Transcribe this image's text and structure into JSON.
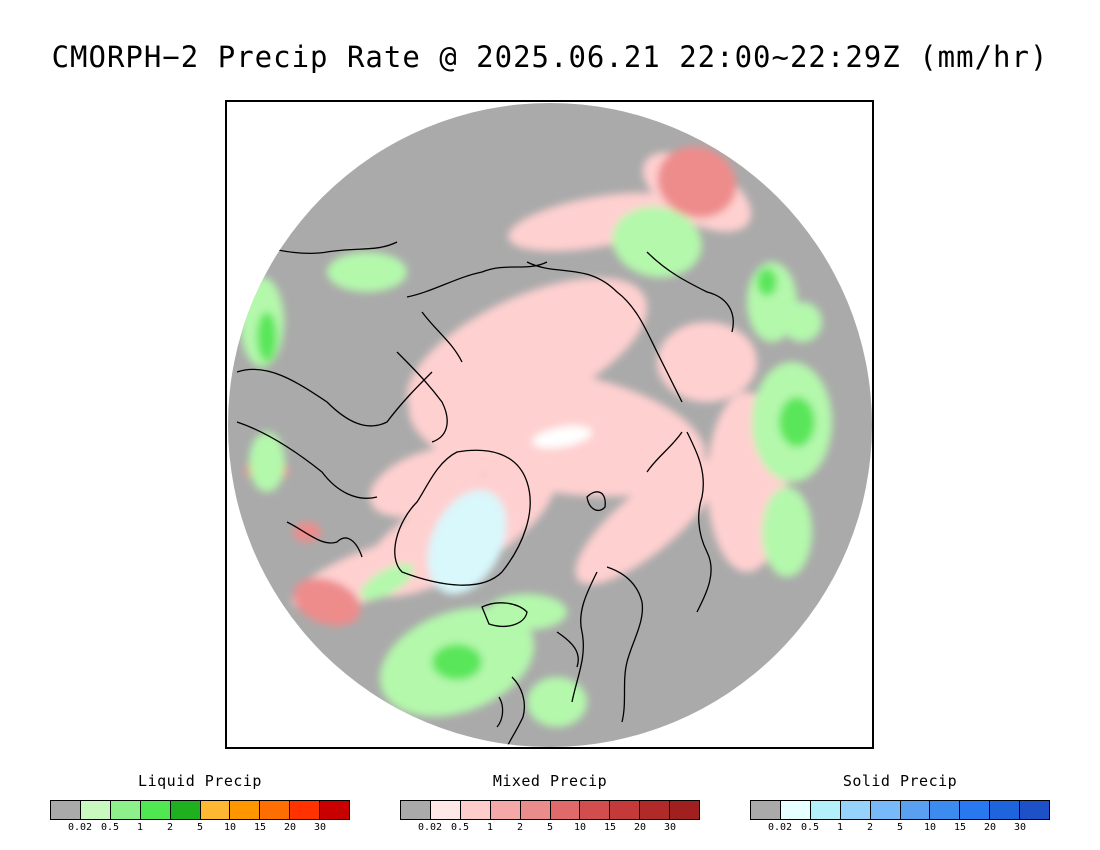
{
  "title": "CMORPH−2 Precip Rate @ 2025.06.21 22:00~22:29Z (mm/hr)",
  "map": {
    "colors": {
      "no_data": "#ffffff",
      "background_precip": "#aaaaaa",
      "coastline": "#000000",
      "liquid_light": "#b4f8ac",
      "liquid_mid": "#5ae65a",
      "liquid_dark": "#1fb01f",
      "mixed_light": "#ffd0d0",
      "mixed_mid": "#ee8c8c",
      "solid_light": "#d8f8fc"
    }
  },
  "legends": [
    {
      "title": "Liquid Precip",
      "colors": [
        "#aaaaaa",
        "#c8fac0",
        "#8ef08a",
        "#50e850",
        "#1fb01f",
        "#ffb832",
        "#ff9600",
        "#ff6e00",
        "#ff3200",
        "#c80000"
      ],
      "ticks": [
        "0.02",
        "0.5",
        "1",
        "2",
        "5",
        "10",
        "15",
        "20",
        "30"
      ]
    },
    {
      "title": "Mixed Precip",
      "colors": [
        "#aaaaaa",
        "#ffe8e8",
        "#ffcccc",
        "#f4a8a8",
        "#ea8c8c",
        "#e06a6a",
        "#d24e4e",
        "#c43a3a",
        "#b02a2a",
        "#a02020"
      ],
      "ticks": [
        "0.02",
        "0.5",
        "1",
        "2",
        "5",
        "10",
        "15",
        "20",
        "30"
      ]
    },
    {
      "title": "Solid Precip",
      "colors": [
        "#aaaaaa",
        "#e6ffff",
        "#b4f0fa",
        "#96d2fa",
        "#78b9fa",
        "#5aa0f0",
        "#3c8cf0",
        "#2878f0",
        "#1e64dc",
        "#1e50c8"
      ],
      "ticks": [
        "0.02",
        "0.5",
        "1",
        "2",
        "5",
        "10",
        "15",
        "20",
        "30"
      ]
    }
  ]
}
